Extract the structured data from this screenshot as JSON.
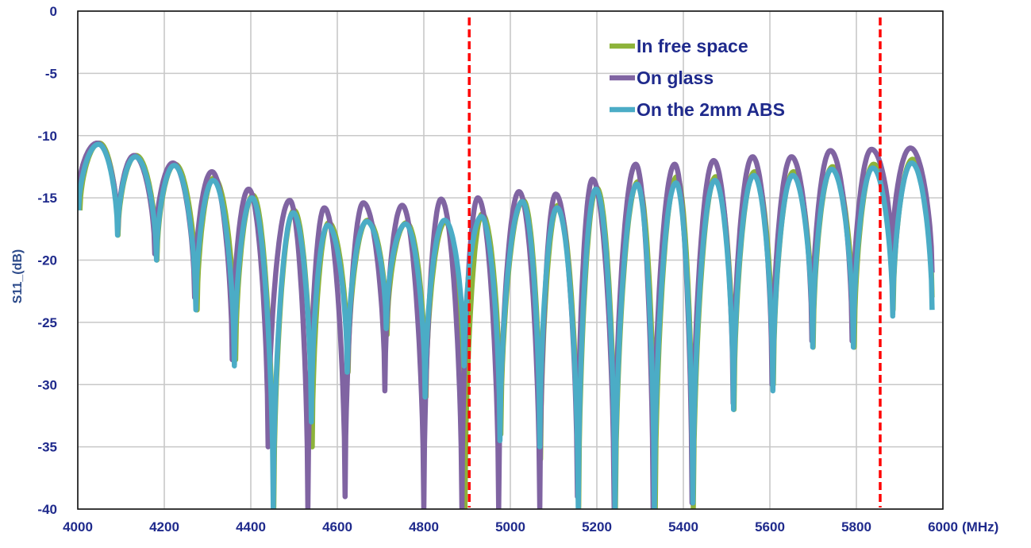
{
  "chart_data": {
    "type": "line",
    "xlabel": "(MHz)",
    "ylabel": "S11_(dB)",
    "xlim": [
      4000,
      6000
    ],
    "ylim": [
      -40,
      0
    ],
    "x_ticks": [
      "4000",
      "4200",
      "4400",
      "4600",
      "4800",
      "5000",
      "5200",
      "5400",
      "5600",
      "5800",
      "6000"
    ],
    "y_ticks": [
      "0",
      "-5",
      "-10",
      "-15",
      "-20",
      "-25",
      "-30",
      "-35",
      "-40"
    ],
    "grid": true,
    "legend_position": "top-right",
    "series": [
      {
        "name": "In free space",
        "color": "#8db33a",
        "dip_x": [
          4005,
          4093,
          4183,
          4276,
          4365,
          4453,
          4542,
          4625,
          4715,
          4805,
          4895,
          4978,
          5070,
          5158,
          5243,
          5335,
          5423,
          5517,
          5608,
          5700,
          5795,
          5885,
          5975
        ],
        "dip_y": [
          -16,
          -18,
          -20,
          -24,
          -28,
          -40,
          -35,
          -29,
          -26,
          -31,
          -40,
          -34,
          -36,
          -40,
          -40,
          -40,
          -40,
          -32,
          -30,
          -27,
          -27,
          -24,
          -23
        ],
        "peak_x": [
          4050,
          4135,
          4225,
          4315,
          4405,
          4500,
          4580,
          4670,
          4760,
          4850,
          4935,
          5030,
          5110,
          5200,
          5295,
          5385,
          5475,
          5565,
          5655,
          5745,
          5840,
          5930
        ],
        "peak_y": [
          -10.6,
          -11.6,
          -12.3,
          -13.4,
          -14.8,
          -16.0,
          -17.0,
          -16.8,
          -17.0,
          -16.9,
          -16.3,
          -15.2,
          -15.6,
          -14.2,
          -13.7,
          -13.3,
          -13.3,
          -12.9,
          -12.9,
          -12.5,
          -12.3,
          -11.9
        ]
      },
      {
        "name": "On glass",
        "color": "#8064a2",
        "dip_x": [
          4000,
          4093,
          4178,
          4270,
          4357,
          4440,
          4532,
          4618,
          4710,
          4800,
          4888,
          4973,
          5068,
          5155,
          5240,
          5330,
          5420,
          5515,
          5605,
          5697,
          5790,
          5882,
          5975
        ],
        "dip_y": [
          -15,
          -17.5,
          -19.5,
          -23,
          -28,
          -35,
          -40,
          -39,
          -30.5,
          -40,
          -40,
          -40,
          -40,
          -39,
          -40,
          -40,
          -39.5,
          -31.5,
          -30,
          -26.5,
          -26.5,
          -20,
          -21
        ],
        "peak_x": [
          4045,
          4130,
          4220,
          4310,
          4395,
          4490,
          4570,
          4660,
          4750,
          4840,
          4925,
          5020,
          5105,
          5190,
          5290,
          5380,
          5470,
          5560,
          5650,
          5740,
          5835,
          5925
        ],
        "peak_y": [
          -10.6,
          -11.6,
          -12.2,
          -12.9,
          -14.3,
          -15.2,
          -15.8,
          -15.4,
          -15.6,
          -15.1,
          -15.0,
          -14.5,
          -14.7,
          -13.5,
          -12.3,
          -12.3,
          -12.0,
          -11.7,
          -11.7,
          -11.2,
          -11.1,
          -11.0
        ]
      },
      {
        "name": "On the 2mm ABS",
        "color": "#4bacc6",
        "dip_x": [
          4002,
          4092,
          4182,
          4273,
          4362,
          4452,
          4540,
          4623,
          4713,
          4803,
          4893,
          4976,
          5068,
          5157,
          5242,
          5333,
          5422,
          5516,
          5607,
          5699,
          5793,
          5884,
          5975
        ],
        "dip_y": [
          -16,
          -18,
          -20,
          -24,
          -28.5,
          -40,
          -33,
          -29,
          -25.5,
          -31,
          -28.5,
          -34.5,
          -35,
          -40,
          -40,
          -40,
          -39.5,
          -32,
          -30.5,
          -27,
          -27,
          -24.5,
          -24
        ],
        "peak_x": [
          4048,
          4133,
          4223,
          4313,
          4403,
          4498,
          4578,
          4668,
          4758,
          4848,
          4933,
          5028,
          5108,
          5198,
          5293,
          5383,
          5473,
          5563,
          5653,
          5743,
          5838,
          5928
        ],
        "peak_y": [
          -10.7,
          -11.7,
          -12.4,
          -13.6,
          -15.0,
          -16.2,
          -17.2,
          -16.9,
          -17.1,
          -16.8,
          -16.5,
          -15.3,
          -15.8,
          -14.3,
          -13.9,
          -13.8,
          -13.6,
          -13.2,
          -13.2,
          -12.7,
          -12.6,
          -12.2
        ]
      }
    ],
    "reference_lines": [
      {
        "x": 4905,
        "color": "#ff0000",
        "style": "dashed"
      },
      {
        "x": 5855,
        "color": "#ff0000",
        "style": "dashed"
      }
    ]
  }
}
